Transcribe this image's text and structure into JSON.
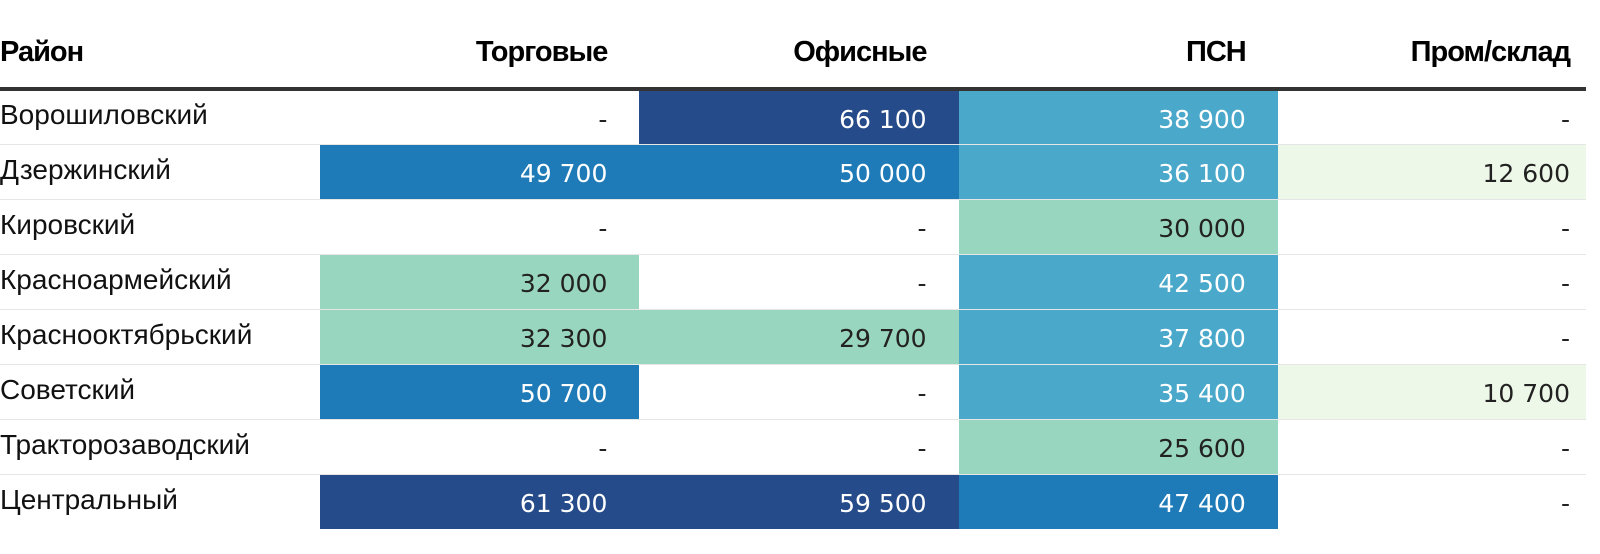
{
  "chart_data": {
    "type": "table",
    "columns": [
      "Район",
      "Торговые",
      "Офисные",
      "ПСН",
      "Пром/склад"
    ],
    "rows": [
      {
        "district": "Ворошиловский",
        "values": [
          "-",
          "66 100",
          "38 900",
          "-"
        ],
        "fills": [
          "",
          "#264b8a",
          "#4aa8cb",
          ""
        ],
        "text_colors": [
          "",
          "#ffffff",
          "#ffffff",
          ""
        ]
      },
      {
        "district": "Дзержинский",
        "values": [
          "49 700",
          "50 000",
          "36 100",
          "12 600"
        ],
        "fills": [
          "#1e7bb8",
          "#1e7bb8",
          "#4aa8cb",
          "#eef8e8"
        ],
        "text_colors": [
          "#ffffff",
          "#ffffff",
          "#ffffff",
          "#222222"
        ]
      },
      {
        "district": "Кировский",
        "values": [
          "-",
          "-",
          "30 000",
          "-"
        ],
        "fills": [
          "",
          "",
          "#99d6c0",
          ""
        ],
        "text_colors": [
          "",
          "",
          "#222222",
          ""
        ]
      },
      {
        "district": "Красноармейский",
        "values": [
          "32 000",
          "-",
          "42 500",
          "-"
        ],
        "fills": [
          "#99d6c0",
          "",
          "#4aa8cb",
          ""
        ],
        "text_colors": [
          "#222222",
          "",
          "#ffffff",
          ""
        ]
      },
      {
        "district": "Краснооктябрьский",
        "values": [
          "32 300",
          "29 700",
          "37 800",
          "-"
        ],
        "fills": [
          "#99d6c0",
          "#99d6c0",
          "#4aa8cb",
          ""
        ],
        "text_colors": [
          "#222222",
          "#222222",
          "#ffffff",
          ""
        ]
      },
      {
        "district": "Советский",
        "values": [
          "50 700",
          "-",
          "35 400",
          "10 700"
        ],
        "fills": [
          "#1e7bb8",
          "",
          "#4aa8cb",
          "#eef8e8"
        ],
        "text_colors": [
          "#ffffff",
          "",
          "#ffffff",
          "#222222"
        ]
      },
      {
        "district": "Тракторозаводский",
        "values": [
          "-",
          "-",
          "25 600",
          "-"
        ],
        "fills": [
          "",
          "",
          "#99d6c0",
          ""
        ],
        "text_colors": [
          "",
          "",
          "#222222",
          ""
        ]
      },
      {
        "district": "Центральный",
        "values": [
          "61 300",
          "59 500",
          "47 400",
          "-"
        ],
        "fills": [
          "#264b8a",
          "#264b8a",
          "#1e7bb8",
          ""
        ],
        "text_colors": [
          "#ffffff",
          "#ffffff",
          "#ffffff",
          ""
        ]
      }
    ]
  }
}
